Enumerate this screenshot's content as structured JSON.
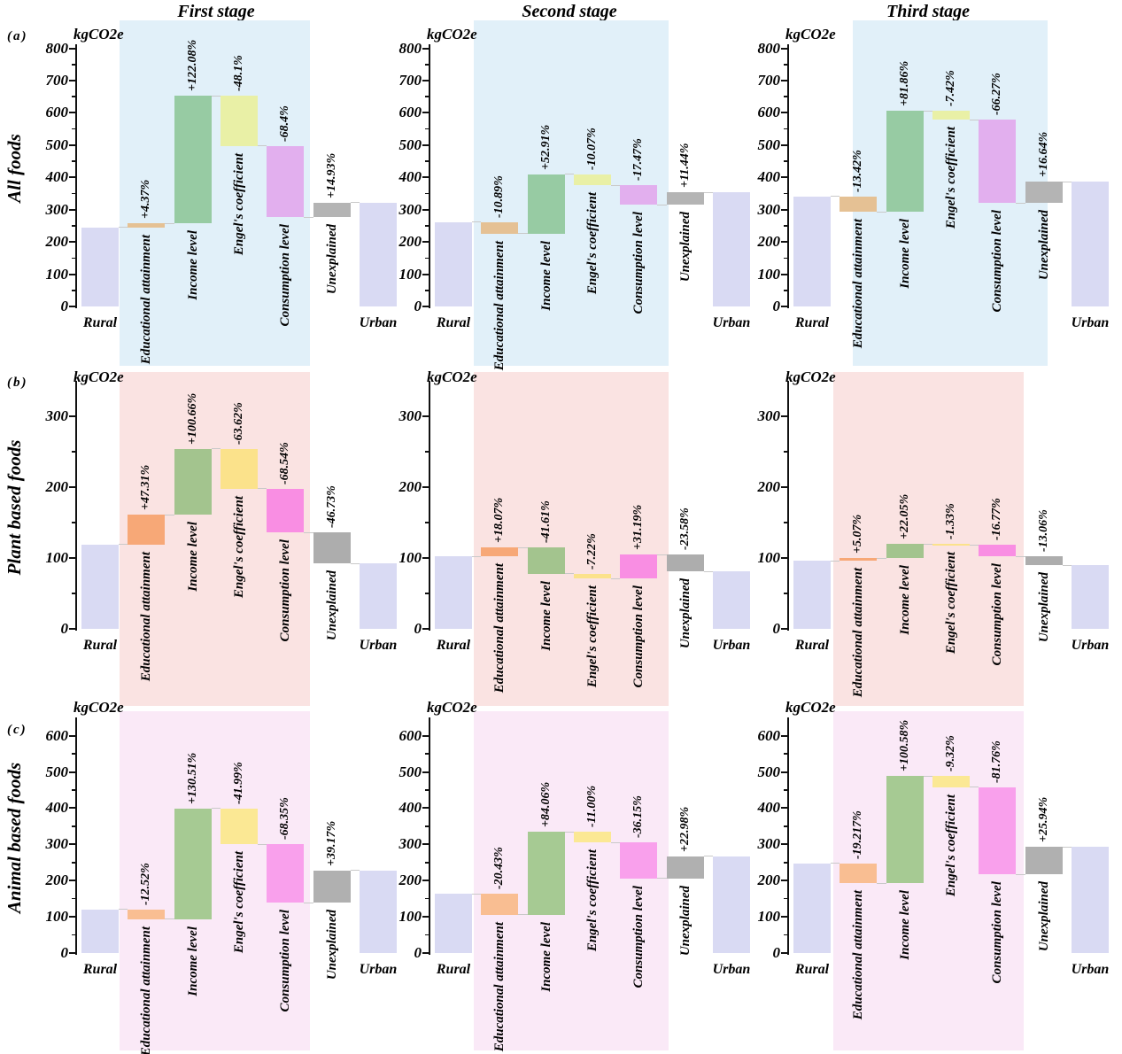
{
  "figure": {
    "stage_titles": [
      "First stage",
      "Second stage",
      "Third stage"
    ],
    "unit_label": "kgCO2e",
    "rows": [
      {
        "tag": "(a)",
        "label": "All foods",
        "bg": "#E1F0F9",
        "colors": [
          "#D9DAF3",
          "#E5C194",
          "#97CBA3",
          "#E9F0A6",
          "#E2AFEE",
          "#B4B4B4",
          "#D9DAF3"
        ]
      },
      {
        "tag": "(b)",
        "label": "Plant based foods",
        "bg": "#FAE3E2",
        "colors": [
          "#D9DAF3",
          "#F7A877",
          "#A3C48E",
          "#FBE28B",
          "#F98EE3",
          "#ADADAD",
          "#D9DAF3"
        ]
      },
      {
        "tag": "(c)",
        "label": "Animal based foods",
        "bg": "#FAE9F7",
        "colors": [
          "#D9DAF3",
          "#F9BE92",
          "#A6CA93",
          "#FBE894",
          "#F9A0EC",
          "#B0B0B0",
          "#D9DAF3"
        ]
      }
    ]
  },
  "chart_data": [
    {
      "type": "bar",
      "subtype": "waterfall",
      "row_label": "All foods",
      "stage": "First stage",
      "unit": "kgCO2e",
      "ylim": [
        0,
        800
      ],
      "yticks": [
        0,
        100,
        200,
        300,
        400,
        500,
        600,
        700,
        800
      ],
      "bars": [
        {
          "category": "Rural",
          "kind": "total",
          "from": 0,
          "to": 245,
          "pct": null
        },
        {
          "category": "Educational attainment",
          "kind": "delta",
          "from": 245,
          "to": 258,
          "pct": "+4.37%"
        },
        {
          "category": "Income level",
          "kind": "delta",
          "from": 258,
          "to": 652,
          "pct": "+122.08%"
        },
        {
          "category": "Engel's coefficient",
          "kind": "delta",
          "from": 652,
          "to": 498,
          "pct": "-48.1%"
        },
        {
          "category": "Consumption level",
          "kind": "delta",
          "from": 498,
          "to": 277,
          "pct": "-68.4%"
        },
        {
          "category": "Unexplained",
          "kind": "delta",
          "from": 277,
          "to": 322,
          "pct": "+14.93%"
        },
        {
          "category": "Urban",
          "kind": "total",
          "from": 0,
          "to": 322,
          "pct": null
        }
      ]
    },
    {
      "type": "bar",
      "subtype": "waterfall",
      "row_label": "All foods",
      "stage": "Second stage",
      "unit": "kgCO2e",
      "ylim": [
        0,
        800
      ],
      "yticks": [
        0,
        100,
        200,
        300,
        400,
        500,
        600,
        700,
        800
      ],
      "bars": [
        {
          "category": "Rural",
          "kind": "total",
          "from": 0,
          "to": 261,
          "pct": null
        },
        {
          "category": "Educational attainment",
          "kind": "delta",
          "from": 261,
          "to": 226,
          "pct": "-10.89%"
        },
        {
          "category": "Income level",
          "kind": "delta",
          "from": 226,
          "to": 410,
          "pct": "+52.91%"
        },
        {
          "category": "Engel's coefficient",
          "kind": "delta",
          "from": 410,
          "to": 376,
          "pct": "-10.07%"
        },
        {
          "category": "Consumption level",
          "kind": "delta",
          "from": 376,
          "to": 315,
          "pct": "-17.47%"
        },
        {
          "category": "Unexplained",
          "kind": "delta",
          "from": 315,
          "to": 353,
          "pct": "+11.44%"
        },
        {
          "category": "Urban",
          "kind": "total",
          "from": 0,
          "to": 353,
          "pct": null
        }
      ]
    },
    {
      "type": "bar",
      "subtype": "waterfall",
      "row_label": "All foods",
      "stage": "Third stage",
      "unit": "kgCO2e",
      "ylim": [
        0,
        800
      ],
      "yticks": [
        0,
        100,
        200,
        300,
        400,
        500,
        600,
        700,
        800
      ],
      "bars": [
        {
          "category": "Rural",
          "kind": "total",
          "from": 0,
          "to": 341,
          "pct": null
        },
        {
          "category": "Educational attainment",
          "kind": "delta",
          "from": 341,
          "to": 293,
          "pct": "-13.42%"
        },
        {
          "category": "Income level",
          "kind": "delta",
          "from": 293,
          "to": 606,
          "pct": "+81.86%"
        },
        {
          "category": "Engel's coefficient",
          "kind": "delta",
          "from": 606,
          "to": 578,
          "pct": "-7.42%"
        },
        {
          "category": "Consumption level",
          "kind": "delta",
          "from": 578,
          "to": 320,
          "pct": "-66.27%"
        },
        {
          "category": "Unexplained",
          "kind": "delta",
          "from": 320,
          "to": 386,
          "pct": "+16.64%"
        },
        {
          "category": "Urban",
          "kind": "total",
          "from": 0,
          "to": 386,
          "pct": null
        }
      ]
    },
    {
      "type": "bar",
      "subtype": "waterfall",
      "row_label": "Plant based foods",
      "stage": "First stage",
      "unit": "kgCO2e",
      "ylim": [
        0,
        350
      ],
      "yticks": [
        0,
        100,
        200,
        300
      ],
      "bars": [
        {
          "category": "Rural",
          "kind": "total",
          "from": 0,
          "to": 119,
          "pct": null
        },
        {
          "category": "Educational attainment",
          "kind": "delta",
          "from": 119,
          "to": 161,
          "pct": "+47.31%"
        },
        {
          "category": "Income level",
          "kind": "delta",
          "from": 161,
          "to": 254,
          "pct": "+100.66%"
        },
        {
          "category": "Engel's coefficient",
          "kind": "delta",
          "from": 254,
          "to": 198,
          "pct": "-63.62%"
        },
        {
          "category": "Consumption level",
          "kind": "delta",
          "from": 198,
          "to": 136,
          "pct": "-68.54%"
        },
        {
          "category": "Unexplained",
          "kind": "delta",
          "from": 136,
          "to": 92,
          "pct": "-46.73%"
        },
        {
          "category": "Urban",
          "kind": "total",
          "from": 0,
          "to": 92,
          "pct": null
        }
      ]
    },
    {
      "type": "bar",
      "subtype": "waterfall",
      "row_label": "Plant based foods",
      "stage": "Second stage",
      "unit": "kgCO2e",
      "ylim": [
        0,
        350
      ],
      "yticks": [
        0,
        100,
        200,
        300
      ],
      "bars": [
        {
          "category": "Rural",
          "kind": "total",
          "from": 0,
          "to": 102,
          "pct": null
        },
        {
          "category": "Educational attainment",
          "kind": "delta",
          "from": 102,
          "to": 115,
          "pct": "+18.07%"
        },
        {
          "category": "Income level",
          "kind": "delta",
          "from": 115,
          "to": 78,
          "pct": "-41.61%"
        },
        {
          "category": "Engel's coefficient",
          "kind": "delta",
          "from": 78,
          "to": 71,
          "pct": "-7.22%"
        },
        {
          "category": "Consumption level",
          "kind": "delta",
          "from": 71,
          "to": 105,
          "pct": "+31.19%"
        },
        {
          "category": "Unexplained",
          "kind": "delta",
          "from": 105,
          "to": 81,
          "pct": "-23.58%"
        },
        {
          "category": "Urban",
          "kind": "total",
          "from": 0,
          "to": 81,
          "pct": null
        }
      ]
    },
    {
      "type": "bar",
      "subtype": "waterfall",
      "row_label": "Plant based foods",
      "stage": "Third stage",
      "unit": "kgCO2e",
      "ylim": [
        0,
        350
      ],
      "yticks": [
        0,
        100,
        200,
        300
      ],
      "bars": [
        {
          "category": "Rural",
          "kind": "total",
          "from": 0,
          "to": 96,
          "pct": null
        },
        {
          "category": "Educational attainment",
          "kind": "delta",
          "from": 96,
          "to": 100,
          "pct": "+5.07%"
        },
        {
          "category": "Income level",
          "kind": "delta",
          "from": 100,
          "to": 120,
          "pct": "+22.05%"
        },
        {
          "category": "Engel's coefficient",
          "kind": "delta",
          "from": 120,
          "to": 118.7,
          "pct": "-1.33%"
        },
        {
          "category": "Consumption level",
          "kind": "delta",
          "from": 118.7,
          "to": 102,
          "pct": "-16.77%"
        },
        {
          "category": "Unexplained",
          "kind": "delta",
          "from": 102,
          "to": 90,
          "pct": "-13.06%"
        },
        {
          "category": "Urban",
          "kind": "total",
          "from": 0,
          "to": 90,
          "pct": null
        }
      ]
    },
    {
      "type": "bar",
      "subtype": "waterfall",
      "row_label": "Animal based foods",
      "stage": "First stage",
      "unit": "kgCO2e",
      "ylim": [
        0,
        650
      ],
      "yticks": [
        0,
        100,
        200,
        300,
        400,
        500,
        600
      ],
      "bars": [
        {
          "category": "Rural",
          "kind": "total",
          "from": 0,
          "to": 120,
          "pct": null
        },
        {
          "category": "Educational attainment",
          "kind": "delta",
          "from": 120,
          "to": 93,
          "pct": "-12.52%"
        },
        {
          "category": "Income level",
          "kind": "delta",
          "from": 93,
          "to": 399,
          "pct": "+130.51%"
        },
        {
          "category": "Engel's coefficient",
          "kind": "delta",
          "from": 399,
          "to": 300,
          "pct": "-41.99%"
        },
        {
          "category": "Consumption level",
          "kind": "delta",
          "from": 300,
          "to": 139,
          "pct": "-68.35%"
        },
        {
          "category": "Unexplained",
          "kind": "delta",
          "from": 139,
          "to": 228,
          "pct": "+39.17%"
        },
        {
          "category": "Urban",
          "kind": "total",
          "from": 0,
          "to": 228,
          "pct": null
        }
      ]
    },
    {
      "type": "bar",
      "subtype": "waterfall",
      "row_label": "Animal based foods",
      "stage": "Second stage",
      "unit": "kgCO2e",
      "ylim": [
        0,
        650
      ],
      "yticks": [
        0,
        100,
        200,
        300,
        400,
        500,
        600
      ],
      "bars": [
        {
          "category": "Rural",
          "kind": "total",
          "from": 0,
          "to": 163,
          "pct": null
        },
        {
          "category": "Educational attainment",
          "kind": "delta",
          "from": 163,
          "to": 106,
          "pct": "-20.43%"
        },
        {
          "category": "Income level",
          "kind": "delta",
          "from": 106,
          "to": 334,
          "pct": "+84.06%"
        },
        {
          "category": "Engel's coefficient",
          "kind": "delta",
          "from": 334,
          "to": 305,
          "pct": "-11.00%"
        },
        {
          "category": "Consumption level",
          "kind": "delta",
          "from": 305,
          "to": 206,
          "pct": "-36.15%"
        },
        {
          "category": "Unexplained",
          "kind": "delta",
          "from": 206,
          "to": 267,
          "pct": "+22.98%"
        },
        {
          "category": "Urban",
          "kind": "total",
          "from": 0,
          "to": 267,
          "pct": null
        }
      ]
    },
    {
      "type": "bar",
      "subtype": "waterfall",
      "row_label": "Animal based foods",
      "stage": "Third stage",
      "unit": "kgCO2e",
      "ylim": [
        0,
        650
      ],
      "yticks": [
        0,
        100,
        200,
        300,
        400,
        500,
        600
      ],
      "bars": [
        {
          "category": "Rural",
          "kind": "total",
          "from": 0,
          "to": 247,
          "pct": null
        },
        {
          "category": "Educational attainment",
          "kind": "delta",
          "from": 247,
          "to": 192,
          "pct": "-19.217%"
        },
        {
          "category": "Income level",
          "kind": "delta",
          "from": 192,
          "to": 488,
          "pct": "+100.58%"
        },
        {
          "category": "Engel's coefficient",
          "kind": "delta",
          "from": 488,
          "to": 458,
          "pct": "-9.32%"
        },
        {
          "category": "Consumption level",
          "kind": "delta",
          "from": 458,
          "to": 217,
          "pct": "-81.76%"
        },
        {
          "category": "Unexplained",
          "kind": "delta",
          "from": 217,
          "to": 293,
          "pct": "+25.94%"
        },
        {
          "category": "Urban",
          "kind": "total",
          "from": 0,
          "to": 293,
          "pct": null
        }
      ]
    }
  ]
}
